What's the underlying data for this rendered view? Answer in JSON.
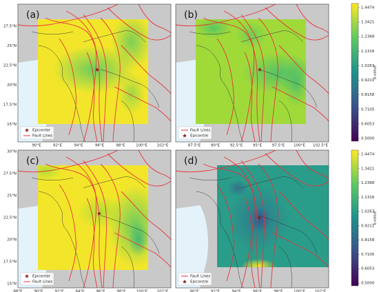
{
  "panels": [
    {
      "label": "(a)",
      "y_ticks": [
        "27.5°N",
        "25°N",
        "22.5°N",
        "20°N",
        "17.5°N",
        "15°N"
      ],
      "x_ticks": [
        "90°E",
        "92°E",
        "94°E",
        "96°E",
        "98°E",
        "100°E",
        "102°E"
      ],
      "legend": [
        "Epicenter",
        "Fault Lines"
      ]
    },
    {
      "label": "(b)",
      "y_ticks": [],
      "x_ticks": [
        "87.5°E",
        "90°E",
        "92.5°E",
        "95°E",
        "97.5°E",
        "100°E",
        "102.5°E"
      ],
      "legend": [
        "Fault Lines",
        "Epicentre"
      ]
    },
    {
      "label": "(c)",
      "y_ticks": [
        "30°N",
        "27.5°N",
        "25°N",
        "22.5°N",
        "20°N",
        "17.5°N",
        "15°N"
      ],
      "x_ticks": [
        "88°E",
        "90°E",
        "92°E",
        "94°E",
        "96°E",
        "98°E",
        "100°E",
        "102°E"
      ],
      "legend": [
        "Epicenter",
        "Fault Lines"
      ]
    },
    {
      "label": "(d)",
      "y_ticks": [],
      "x_ticks": [
        "90°E",
        "92°E",
        "94°E",
        "96°E",
        "98°E",
        "100°E",
        "102°E"
      ],
      "legend": [
        "Fault Lines",
        "Epicentre"
      ]
    }
  ],
  "colorbars": [
    {
      "ticks": [
        "1.4474",
        "1.3421",
        "1.2368",
        "1.1316",
        "1.0263",
        "0.9211",
        "0.8158",
        "0.7105",
        "0.6053",
        "0.5000"
      ],
      "label": "b-value"
    },
    {
      "ticks": [
        "1.4474",
        "1.3421",
        "1.2368",
        "1.1316",
        "1.0263",
        "0.9211",
        "0.8158",
        "0.7105",
        "0.6053",
        "0.5000"
      ],
      "label": "b-value"
    }
  ]
}
